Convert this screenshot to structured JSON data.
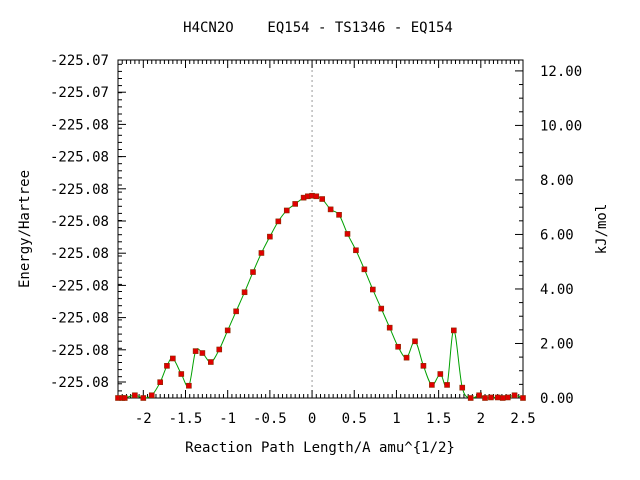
{
  "chart_data": {
    "type": "line",
    "title": "H4CN2O    EQ154 - TS1346 - EQ154",
    "xlabel": "Reaction Path Length/A amu^{1/2}",
    "ylabel": "Energy/Hartree",
    "y2label": "kJ/mol",
    "xlim": [
      -2.3,
      2.5
    ],
    "y2lim": [
      0.0,
      12.4
    ],
    "x_ticks": [
      -2,
      -1.5,
      -1,
      -0.5,
      0,
      0.5,
      1,
      1.5,
      2,
      2.5
    ],
    "x_tick_labels": [
      "-2",
      "-1.5",
      "-1",
      "-0.5",
      "0",
      "0.5",
      "1",
      "1.5",
      "2",
      "2.5"
    ],
    "y_tick_labels": [
      "-225.08",
      "-225.08",
      "-225.08",
      "-225.08",
      "-225.08",
      "-225.08",
      "-225.08",
      "-225.08",
      "-225.08",
      "-225.07",
      "-225.07"
    ],
    "y2_ticks": [
      0,
      2,
      4,
      6,
      8,
      10,
      12
    ],
    "y2_tick_labels": [
      "0.00",
      "2.00",
      "4.00",
      "6.00",
      "8.00",
      "10.00",
      "12.00"
    ],
    "reference_line_x": 0,
    "grid": false,
    "legend": "none",
    "colors": {
      "line": "#00a000",
      "marker": "#e00000",
      "marker_edge": "#8a2a00",
      "zero_line": "#999999"
    },
    "series": [
      {
        "points": [
          [
            -2.3,
            0.0
          ],
          [
            -2.25,
            0.0
          ],
          [
            -2.22,
            0.0
          ],
          [
            -2.1,
            0.1
          ],
          [
            -2.0,
            0.0
          ],
          [
            -1.9,
            0.1
          ],
          [
            -1.8,
            0.58
          ],
          [
            -1.72,
            1.18
          ],
          [
            -1.65,
            1.45
          ],
          [
            -1.55,
            0.88
          ],
          [
            -1.46,
            0.45
          ],
          [
            -1.38,
            1.72
          ],
          [
            -1.3,
            1.65
          ],
          [
            -1.2,
            1.32
          ],
          [
            -1.1,
            1.78
          ],
          [
            -1.0,
            2.48
          ],
          [
            -0.9,
            3.18
          ],
          [
            -0.8,
            3.88
          ],
          [
            -0.7,
            4.62
          ],
          [
            -0.6,
            5.32
          ],
          [
            -0.5,
            5.92
          ],
          [
            -0.4,
            6.48
          ],
          [
            -0.3,
            6.88
          ],
          [
            -0.2,
            7.12
          ],
          [
            -0.1,
            7.35
          ],
          [
            -0.05,
            7.4
          ],
          [
            0.0,
            7.42
          ],
          [
            0.05,
            7.4
          ],
          [
            0.12,
            7.3
          ],
          [
            0.22,
            6.92
          ],
          [
            0.32,
            6.72
          ],
          [
            0.42,
            6.02
          ],
          [
            0.52,
            5.42
          ],
          [
            0.62,
            4.72
          ],
          [
            0.72,
            3.98
          ],
          [
            0.82,
            3.28
          ],
          [
            0.92,
            2.58
          ],
          [
            1.02,
            1.88
          ],
          [
            1.12,
            1.48
          ],
          [
            1.22,
            2.08
          ],
          [
            1.32,
            1.18
          ],
          [
            1.42,
            0.48
          ],
          [
            1.52,
            0.88
          ],
          [
            1.6,
            0.48
          ],
          [
            1.68,
            2.48
          ],
          [
            1.78,
            0.38
          ],
          [
            1.88,
            0.0
          ],
          [
            1.98,
            0.1
          ],
          [
            2.05,
            0.0
          ],
          [
            2.12,
            0.02
          ],
          [
            2.2,
            0.02
          ],
          [
            2.26,
            0.0
          ],
          [
            2.32,
            0.02
          ],
          [
            2.4,
            0.1
          ],
          [
            2.5,
            0.0
          ]
        ]
      }
    ]
  }
}
